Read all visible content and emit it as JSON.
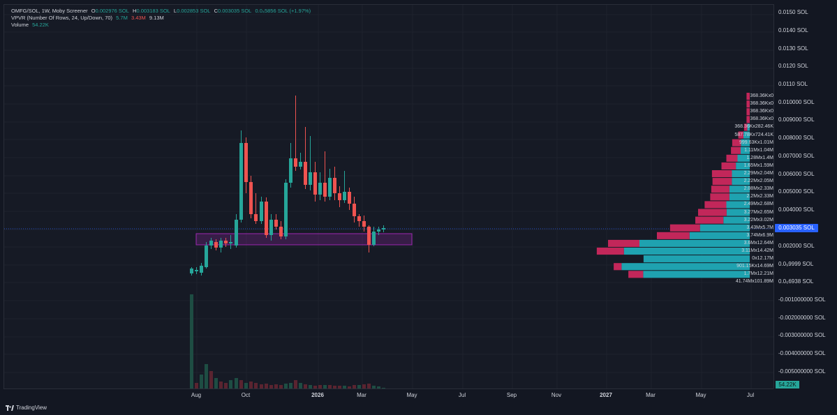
{
  "legend": {
    "symbol_line": {
      "title": "OMFG/SOL, 1W, Moby Screener",
      "o_label": "O",
      "o_value": "0.002976 SOL",
      "h_label": "H",
      "h_value": "0.003183 SOL",
      "l_label": "L",
      "l_value": "0.002853 SOL",
      "c_label": "C",
      "c_value": "0.003035 SOL",
      "change": "0.0₄5856 SOL (+1.97%)"
    },
    "vpvr_line": {
      "title": "VPVR (Number Of Rows, 24, Up/Down, 70)",
      "v1": "5.7M",
      "v2": "3.43M",
      "v3": "9.13M"
    },
    "volume_line": {
      "title": "Volume",
      "value": "54.22K"
    }
  },
  "price_axis": {
    "ticks": [
      "0.0150 SOL",
      "0.0140 SOL",
      "0.0130 SOL",
      "0.0120 SOL",
      "0.0110 SOL",
      "0.010000 SOL",
      "0.009000 SOL",
      "0.008000 SOL",
      "0.007000 SOL",
      "0.006000 SOL",
      "0.005000 SOL",
      "0.004000 SOL",
      "0.002000 SOL",
      "0.0₉9999 SOL",
      "0.0₆6938 SOL",
      "-0.001000000 SOL",
      "-0.002000000 SOL",
      "-0.003000000 SOL",
      "-0.004000000 SOL",
      "-0.005000000 SOL"
    ],
    "current_price": "0.003035 SOL",
    "volume_badge": "54.22K"
  },
  "time_axis": {
    "ticks": [
      {
        "label": "Aug",
        "year": false
      },
      {
        "label": "Oct",
        "year": false
      },
      {
        "label": "2026",
        "year": true
      },
      {
        "label": "Mar",
        "year": false
      },
      {
        "label": "May",
        "year": false
      },
      {
        "label": "Jul",
        "year": false
      },
      {
        "label": "Sep",
        "year": false
      },
      {
        "label": "Nov",
        "year": false
      },
      {
        "label": "2027",
        "year": true
      },
      {
        "label": "Mar",
        "year": false
      },
      {
        "label": "May",
        "year": false
      },
      {
        "label": "Jul",
        "year": false
      }
    ]
  },
  "vpvr_rows": [
    {
      "label": "368.36Kx0",
      "down": 0.368,
      "up": 0
    },
    {
      "label": "368.36Kx0",
      "down": 0.368,
      "up": 0
    },
    {
      "label": "368.36Kx0",
      "down": 0.368,
      "up": 0
    },
    {
      "label": "368.36Kx0",
      "down": 0.368,
      "up": 0
    },
    {
      "label": "368.36Kx282.46K",
      "down": 0.368,
      "up": 0.282
    },
    {
      "label": "587.78Kx724.41K",
      "down": 0.588,
      "up": 0.724
    },
    {
      "label": "999.63Kx1.01M",
      "down": 1.0,
      "up": 1.01
    },
    {
      "label": "1.11Mx1.04M",
      "down": 1.11,
      "up": 1.04
    },
    {
      "label": "1.28Mx1.4M",
      "down": 1.28,
      "up": 1.4
    },
    {
      "label": "1.65Mx1.59M",
      "down": 1.65,
      "up": 1.59
    },
    {
      "label": "2.29Mx2.04M",
      "down": 2.29,
      "up": 2.04
    },
    {
      "label": "2.22Mx2.05M",
      "down": 2.22,
      "up": 2.05
    },
    {
      "label": "2.08Mx2.33M",
      "down": 2.08,
      "up": 2.33
    },
    {
      "label": "2.2Mx2.33M",
      "down": 2.2,
      "up": 2.33
    },
    {
      "label": "2.49Mx2.68M",
      "down": 2.49,
      "up": 2.68
    },
    {
      "label": "3.27Mx2.65M",
      "down": 3.27,
      "up": 2.65
    },
    {
      "label": "3.22Mx3.02M",
      "down": 3.22,
      "up": 3.02
    },
    {
      "label": "3.43Mx5.7M",
      "down": 3.43,
      "up": 5.7
    },
    {
      "label": "3.74Mx6.9M",
      "down": 3.74,
      "up": 6.9
    },
    {
      "label": "3.6Mx12.64M",
      "down": 3.6,
      "up": 12.64
    },
    {
      "label": "3.11Mx14.42M",
      "down": 3.11,
      "up": 14.42
    },
    {
      "label": "0x12.17M",
      "down": 0,
      "up": 12.17
    },
    {
      "label": "901.15Kx14.69M",
      "down": 0.901,
      "up": 14.69
    },
    {
      "label": "1.7Mx12.21M",
      "down": 1.7,
      "up": 12.21
    },
    {
      "label": "41.74Mx101.89M",
      "down": 0,
      "up": 0
    }
  ],
  "colors": {
    "up": "#26a69a",
    "down": "#ef5350",
    "vp_up": "#1fa2b0",
    "vp_down": "#c2275a",
    "zone": "#9c27b0",
    "price_line": "#2962ff"
  },
  "footer": {
    "brand": "TradingView",
    "logo_icon": "tradingview-logo-icon"
  }
}
